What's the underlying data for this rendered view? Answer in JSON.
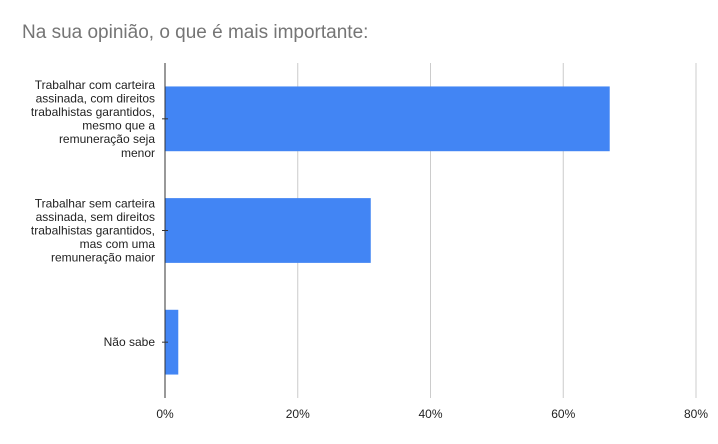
{
  "chart_data": {
    "type": "bar",
    "orientation": "horizontal",
    "title": "Na sua opinião, o que é mais importante:",
    "xlabel": "",
    "ylabel": "",
    "categories": [
      [
        "Trabalhar com carteira",
        "assinada, com direitos",
        "trabalhistas garantidos,",
        "mesmo que a",
        "remuneração seja",
        "menor"
      ],
      [
        "Trabalhar sem carteira",
        "assinada, sem direitos",
        "trabalhistas garantidos,",
        "mas com uma",
        "remuneração maior"
      ],
      [
        "Não sabe"
      ]
    ],
    "values": [
      67,
      31,
      2
    ],
    "xlim": [
      0,
      80
    ],
    "xticks": [
      0,
      20,
      40,
      60,
      80
    ],
    "xtick_labels": [
      "0%",
      "20%",
      "40%",
      "60%",
      "80%"
    ],
    "grid": true,
    "legend": "none",
    "colors": {
      "bar": "#4285f4",
      "grid": "#cccccc",
      "axis": "#333333",
      "title": "#757575",
      "text": "#222222"
    }
  }
}
